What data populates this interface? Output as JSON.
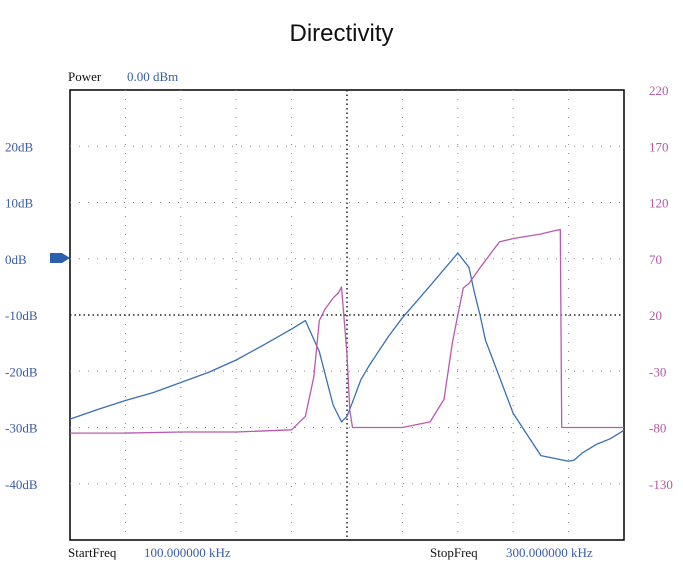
{
  "colors": {
    "background": "#ffffff",
    "frame": "#000000",
    "grid": "#888888",
    "left_axis_text": "#3a5ca8",
    "right_axis_text": "#b35aa8",
    "value_text": "#3a5ca8",
    "marker": "#2c5fb0"
  },
  "header": {
    "power_label": "Power",
    "power_value": "0.00 dBm"
  },
  "footer": {
    "start_label": "StartFreq",
    "start_value": "100.000000 kHz",
    "stop_label": "StopFreq",
    "stop_value": "300.000000 kHz"
  },
  "chart_data": {
    "type": "line",
    "title": "Directivity",
    "x_range_khz": [
      100,
      300
    ],
    "grid": true,
    "reference_marker": "0dB",
    "left_axis": {
      "ticks": [
        "20dB",
        "10dB",
        "0dB",
        "-10dB",
        "-20dB",
        "-30dB",
        "-40dB"
      ],
      "values": [
        20,
        10,
        0,
        -10,
        -20,
        -30,
        -40
      ],
      "range": [
        -50,
        30
      ]
    },
    "right_axis": {
      "ticks": [
        "220",
        "170",
        "120",
        "70",
        "20",
        "-30",
        "-80",
        "-130"
      ],
      "values": [
        220,
        170,
        120,
        70,
        20,
        -30,
        -80,
        -130
      ],
      "range": [
        -180,
        220
      ]
    },
    "series": [
      {
        "axis": "left",
        "color": "#3a6fb5",
        "x": [
          100,
          110,
          120,
          130,
          140,
          150,
          160,
          170,
          180,
          185,
          190,
          195,
          198,
          200,
          202,
          205,
          208,
          210,
          215,
          220,
          230,
          240,
          244,
          246,
          248,
          250,
          255,
          260,
          270,
          280,
          282,
          285,
          290,
          295,
          300
        ],
        "y": [
          -28.5,
          -26.8,
          -25.2,
          -23.8,
          -22.0,
          -20.2,
          -18.0,
          -15.3,
          -12.5,
          -11.0,
          -16.5,
          -26.0,
          -29.0,
          -28.0,
          -25.5,
          -21.5,
          -19.0,
          -17.5,
          -13.8,
          -10.5,
          -4.8,
          1.0,
          -1.5,
          -6.0,
          -10.0,
          -14.5,
          -21.0,
          -27.5,
          -35.0,
          -36.0,
          -35.8,
          -34.5,
          -33.0,
          -32.0,
          -30.5
        ]
      },
      {
        "axis": "right",
        "color": "#b85ab0",
        "x": [
          100,
          120,
          140,
          160,
          180,
          185,
          188,
          190,
          192,
          195,
          197,
          198,
          200,
          201,
          202,
          205,
          210,
          220,
          230,
          235,
          238,
          240,
          242,
          244,
          248,
          255,
          260,
          270,
          275,
          277,
          277.5,
          280,
          290,
          300
        ],
        "y": [
          -85,
          -85,
          -84,
          -84,
          -82,
          -70,
          -35,
          15,
          25,
          35,
          40,
          45,
          -15,
          -65,
          -80,
          -80,
          -80,
          -80,
          -75,
          -55,
          -5,
          20,
          44,
          48,
          62,
          85,
          88,
          92,
          95,
          96,
          -80,
          -80,
          -80,
          -80
        ]
      }
    ]
  }
}
